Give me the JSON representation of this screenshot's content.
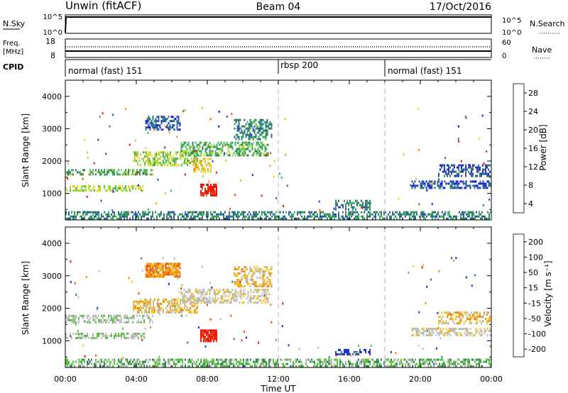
{
  "header": {
    "station": "Unwin (fitACF)",
    "beam": "Beam 04",
    "date": "17/Oct/2016"
  },
  "top_panels": {
    "nsky": {
      "left_label": "N.Sky",
      "right_label": "N.Search",
      "left_ticks": [
        "10^5",
        "10^0"
      ],
      "right_ticks": [
        "10^5",
        "10^0"
      ]
    },
    "freq": {
      "left_label_1": "Freq.",
      "left_label_2": "[MHz]",
      "left_ticks": [
        "18",
        "8"
      ],
      "right_ticks": [
        "60",
        "0"
      ],
      "right_label": "Nave"
    },
    "cpid": {
      "label": "CPID",
      "segments": [
        {
          "label": "normal (fast) 151",
          "start_h": 0
        },
        {
          "label": "rbsp 200",
          "start_h": 12
        },
        {
          "label": "normal (fast) 151",
          "start_h": 18
        }
      ]
    }
  },
  "colors": {
    "power_scale": [
      "#1515f0",
      "#2b4fb5",
      "#2f8060",
      "#3cb35a",
      "#a7d83b",
      "#f2d417",
      "#f39a11",
      "#f05a0f",
      "#e8140c"
    ],
    "velocity_scale": [
      "#1a31c4",
      "#2f6fb0",
      "#2f7d5f",
      "#54c23a",
      "#bcbcbc",
      "#bcbcbc",
      "#f5c21a",
      "#f08a10",
      "#f04a0e",
      "#e8140c"
    ],
    "dash_line": "#bdbdbd"
  },
  "chart_data": [
    {
      "type": "heatmap",
      "name": "power",
      "ylabel": "Slant Range [km]",
      "xlabel": "Time UT",
      "x_ticks": [
        "00:00",
        "04:00",
        "08:00",
        "12:00",
        "16:00",
        "20:00",
        "00:00"
      ],
      "xlim_hours": [
        0,
        24
      ],
      "ylim": [
        180,
        4500
      ],
      "y_ticks": [
        1000,
        2000,
        3000,
        4000
      ],
      "colorbar": {
        "label": "Power [dB]",
        "ticks": [
          "28",
          "24",
          "20",
          "16",
          "12",
          "8",
          "4"
        ],
        "range": [
          0,
          30
        ]
      },
      "regions": [
        {
          "t0": 0.0,
          "t1": 4.5,
          "r0": 1000,
          "r1": 1250,
          "level": 4
        },
        {
          "t0": 0.0,
          "t1": 5.0,
          "r0": 1500,
          "r1": 1750,
          "level": 3
        },
        {
          "t0": 3.8,
          "t1": 7.5,
          "r0": 1800,
          "r1": 2300,
          "level": 4
        },
        {
          "t0": 6.5,
          "t1": 11.5,
          "r0": 2100,
          "r1": 2600,
          "level": 3
        },
        {
          "t0": 9.5,
          "t1": 11.7,
          "r0": 2600,
          "r1": 3300,
          "level": 2
        },
        {
          "t0": 4.5,
          "t1": 6.5,
          "r0": 2900,
          "r1": 3400,
          "level": 1
        },
        {
          "t0": 7.2,
          "t1": 8.3,
          "r0": 1600,
          "r1": 2100,
          "level": 5
        },
        {
          "t0": 7.6,
          "t1": 8.6,
          "r0": 900,
          "r1": 1300,
          "level": 8
        },
        {
          "t0": 15.2,
          "t1": 17.2,
          "r0": 450,
          "r1": 800,
          "level": 2
        },
        {
          "t0": 19.5,
          "t1": 24.0,
          "r0": 1100,
          "r1": 1400,
          "level": 1
        },
        {
          "t0": 21.0,
          "t1": 24.0,
          "r0": 1500,
          "r1": 1900,
          "level": 1
        },
        {
          "t0": 0.0,
          "t1": 24.0,
          "r0": 180,
          "r1": 450,
          "level": 2
        }
      ]
    },
    {
      "type": "heatmap",
      "name": "velocity",
      "ylabel": "Slant Range [km]",
      "xlabel": "Time UT",
      "x_ticks": [
        "00:00",
        "04:00",
        "08:00",
        "12:00",
        "16:00",
        "20:00",
        "00:00"
      ],
      "xlim_hours": [
        0,
        24
      ],
      "ylim": [
        180,
        4500
      ],
      "y_ticks": [
        1000,
        2000,
        3000,
        4000
      ],
      "colorbar": {
        "label": "Velocity [m s⁻¹]",
        "ticks": [
          "200",
          "100",
          "50",
          "15",
          "-15",
          "-50",
          "-100",
          "-200"
        ],
        "range": [
          -250,
          250
        ]
      },
      "regions": [
        {
          "t0": 0.0,
          "t1": 4.5,
          "r0": 1000,
          "r1": 1250,
          "level": 4
        },
        {
          "t0": 0.0,
          "t1": 5.0,
          "r0": 1500,
          "r1": 1800,
          "level": 4
        },
        {
          "t0": 3.8,
          "t1": 7.5,
          "r0": 1800,
          "r1": 2300,
          "level": 6
        },
        {
          "t0": 6.5,
          "t1": 11.5,
          "r0": 2100,
          "r1": 2600,
          "level": 5
        },
        {
          "t0": 9.5,
          "t1": 11.7,
          "r0": 2600,
          "r1": 3300,
          "level": 6
        },
        {
          "t0": 4.5,
          "t1": 6.5,
          "r0": 2900,
          "r1": 3400,
          "level": 7
        },
        {
          "t0": 7.6,
          "t1": 8.6,
          "r0": 900,
          "r1": 1350,
          "level": 9
        },
        {
          "t0": 15.2,
          "t1": 17.2,
          "r0": 500,
          "r1": 750,
          "level": 0
        },
        {
          "t0": 19.5,
          "t1": 24.0,
          "r0": 1100,
          "r1": 1400,
          "level": 5
        },
        {
          "t0": 21.0,
          "t1": 24.0,
          "r0": 1500,
          "r1": 1900,
          "level": 6
        },
        {
          "t0": 0.0,
          "t1": 24.0,
          "r0": 180,
          "r1": 450,
          "level": 3
        }
      ]
    }
  ]
}
